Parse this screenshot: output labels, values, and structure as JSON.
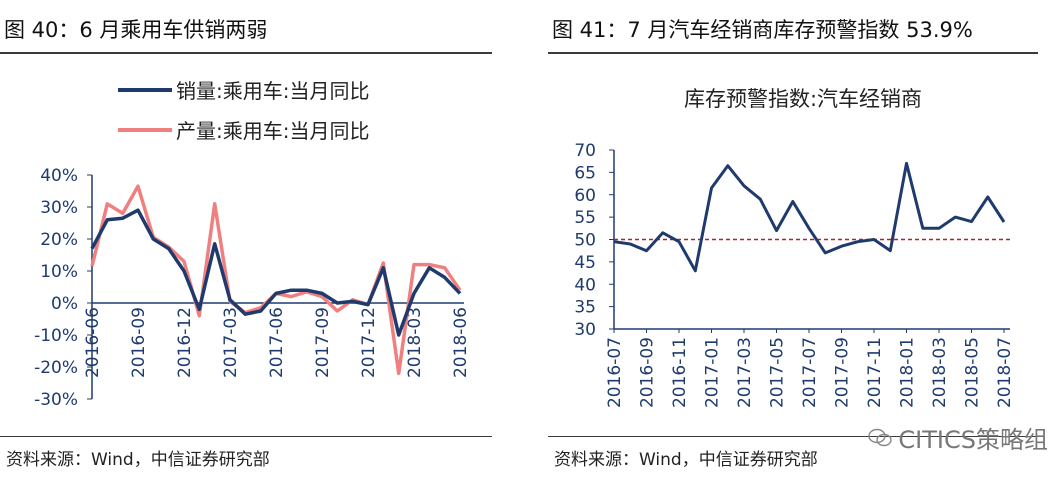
{
  "left_panel": {
    "title": "图 40：6 月乘用车供销两弱",
    "source": "资料来源：Wind，中信证券研究部"
  },
  "right_panel": {
    "title": "图 41：7 月汽车经销商库存预警指数 53.9%",
    "source": "资料来源：Wind，中信证券研究部"
  },
  "watermark": "CITICS策略组",
  "colors": {
    "navy": "#1f3b6e",
    "salmon": "#f08080",
    "refline": "#b22222",
    "axis_text": "#1f3b6e"
  },
  "chart_data": [
    {
      "type": "line",
      "title": "",
      "xlabel": "",
      "ylabel": "",
      "ylim": [
        -30,
        40
      ],
      "yticks": [
        "-30%",
        "-20%",
        "-10%",
        "0%",
        "10%",
        "20%",
        "30%",
        "40%"
      ],
      "ytick_values": [
        -30,
        -20,
        -10,
        0,
        10,
        20,
        30,
        40
      ],
      "x": [
        "2016-06",
        "2016-07",
        "2016-08",
        "2016-09",
        "2016-10",
        "2016-11",
        "2016-12",
        "2017-01",
        "2017-02",
        "2017-03",
        "2017-04",
        "2017-05",
        "2017-06",
        "2017-07",
        "2017-08",
        "2017-09",
        "2017-10",
        "2017-11",
        "2017-12",
        "2018-01",
        "2018-02",
        "2018-03",
        "2018-04",
        "2018-05",
        "2018-06"
      ],
      "xtick_labels": [
        "2016-06",
        "2016-09",
        "2016-12",
        "2017-03",
        "2017-06",
        "2017-09",
        "2017-12",
        "2018-03",
        "2018-06"
      ],
      "legend_position": "top",
      "series": [
        {
          "name": "销量:乘用车:当月同比",
          "color": "#1f3b6e",
          "values": [
            17,
            26,
            26.5,
            29,
            20,
            17,
            10,
            -2,
            18.5,
            1,
            -3.5,
            -2.5,
            3,
            4,
            4,
            3,
            0,
            0.5,
            -0.5,
            11,
            -10,
            3,
            11,
            8,
            3
          ]
        },
        {
          "name": "产量:乘用车:当月同比",
          "color": "#f08080",
          "values": [
            11.5,
            31,
            28,
            36.5,
            20.5,
            17.5,
            13,
            -4,
            31,
            0.5,
            -3,
            -1.5,
            3,
            2,
            3.5,
            2,
            -2.5,
            1,
            -0.5,
            12.5,
            -22,
            12,
            12,
            11,
            4
          ]
        }
      ]
    },
    {
      "type": "line",
      "title": "库存预警指数:汽车经销商",
      "xlabel": "",
      "ylabel": "",
      "ylim": [
        30,
        70
      ],
      "yticks": [
        "30",
        "35",
        "40",
        "45",
        "50",
        "55",
        "60",
        "65",
        "70"
      ],
      "ytick_values": [
        30,
        35,
        40,
        45,
        50,
        55,
        60,
        65,
        70
      ],
      "x": [
        "2016-07",
        "2016-08",
        "2016-09",
        "2016-10",
        "2016-11",
        "2016-12",
        "2017-01",
        "2017-02",
        "2017-03",
        "2017-04",
        "2017-05",
        "2017-06",
        "2017-07",
        "2017-08",
        "2017-09",
        "2017-10",
        "2017-11",
        "2017-12",
        "2018-01",
        "2018-02",
        "2018-03",
        "2018-04",
        "2018-05",
        "2018-06",
        "2018-07"
      ],
      "xtick_labels": [
        "2016-07",
        "2016-09",
        "2016-11",
        "2017-01",
        "2017-03",
        "2017-05",
        "2017-07",
        "2017-09",
        "2017-11",
        "2018-01",
        "2018-03",
        "2018-05",
        "2018-07"
      ],
      "reference_line": 50,
      "series": [
        {
          "name": "库存预警指数:汽车经销商",
          "color": "#1f3b6e",
          "values": [
            49.5,
            49,
            47.5,
            51.5,
            49.5,
            43,
            61.5,
            66.5,
            62,
            59,
            52,
            58.5,
            52.5,
            47,
            48.5,
            49.5,
            50,
            47.5,
            67,
            52.5,
            52.5,
            55,
            54,
            59.5,
            53.9
          ]
        }
      ]
    }
  ]
}
